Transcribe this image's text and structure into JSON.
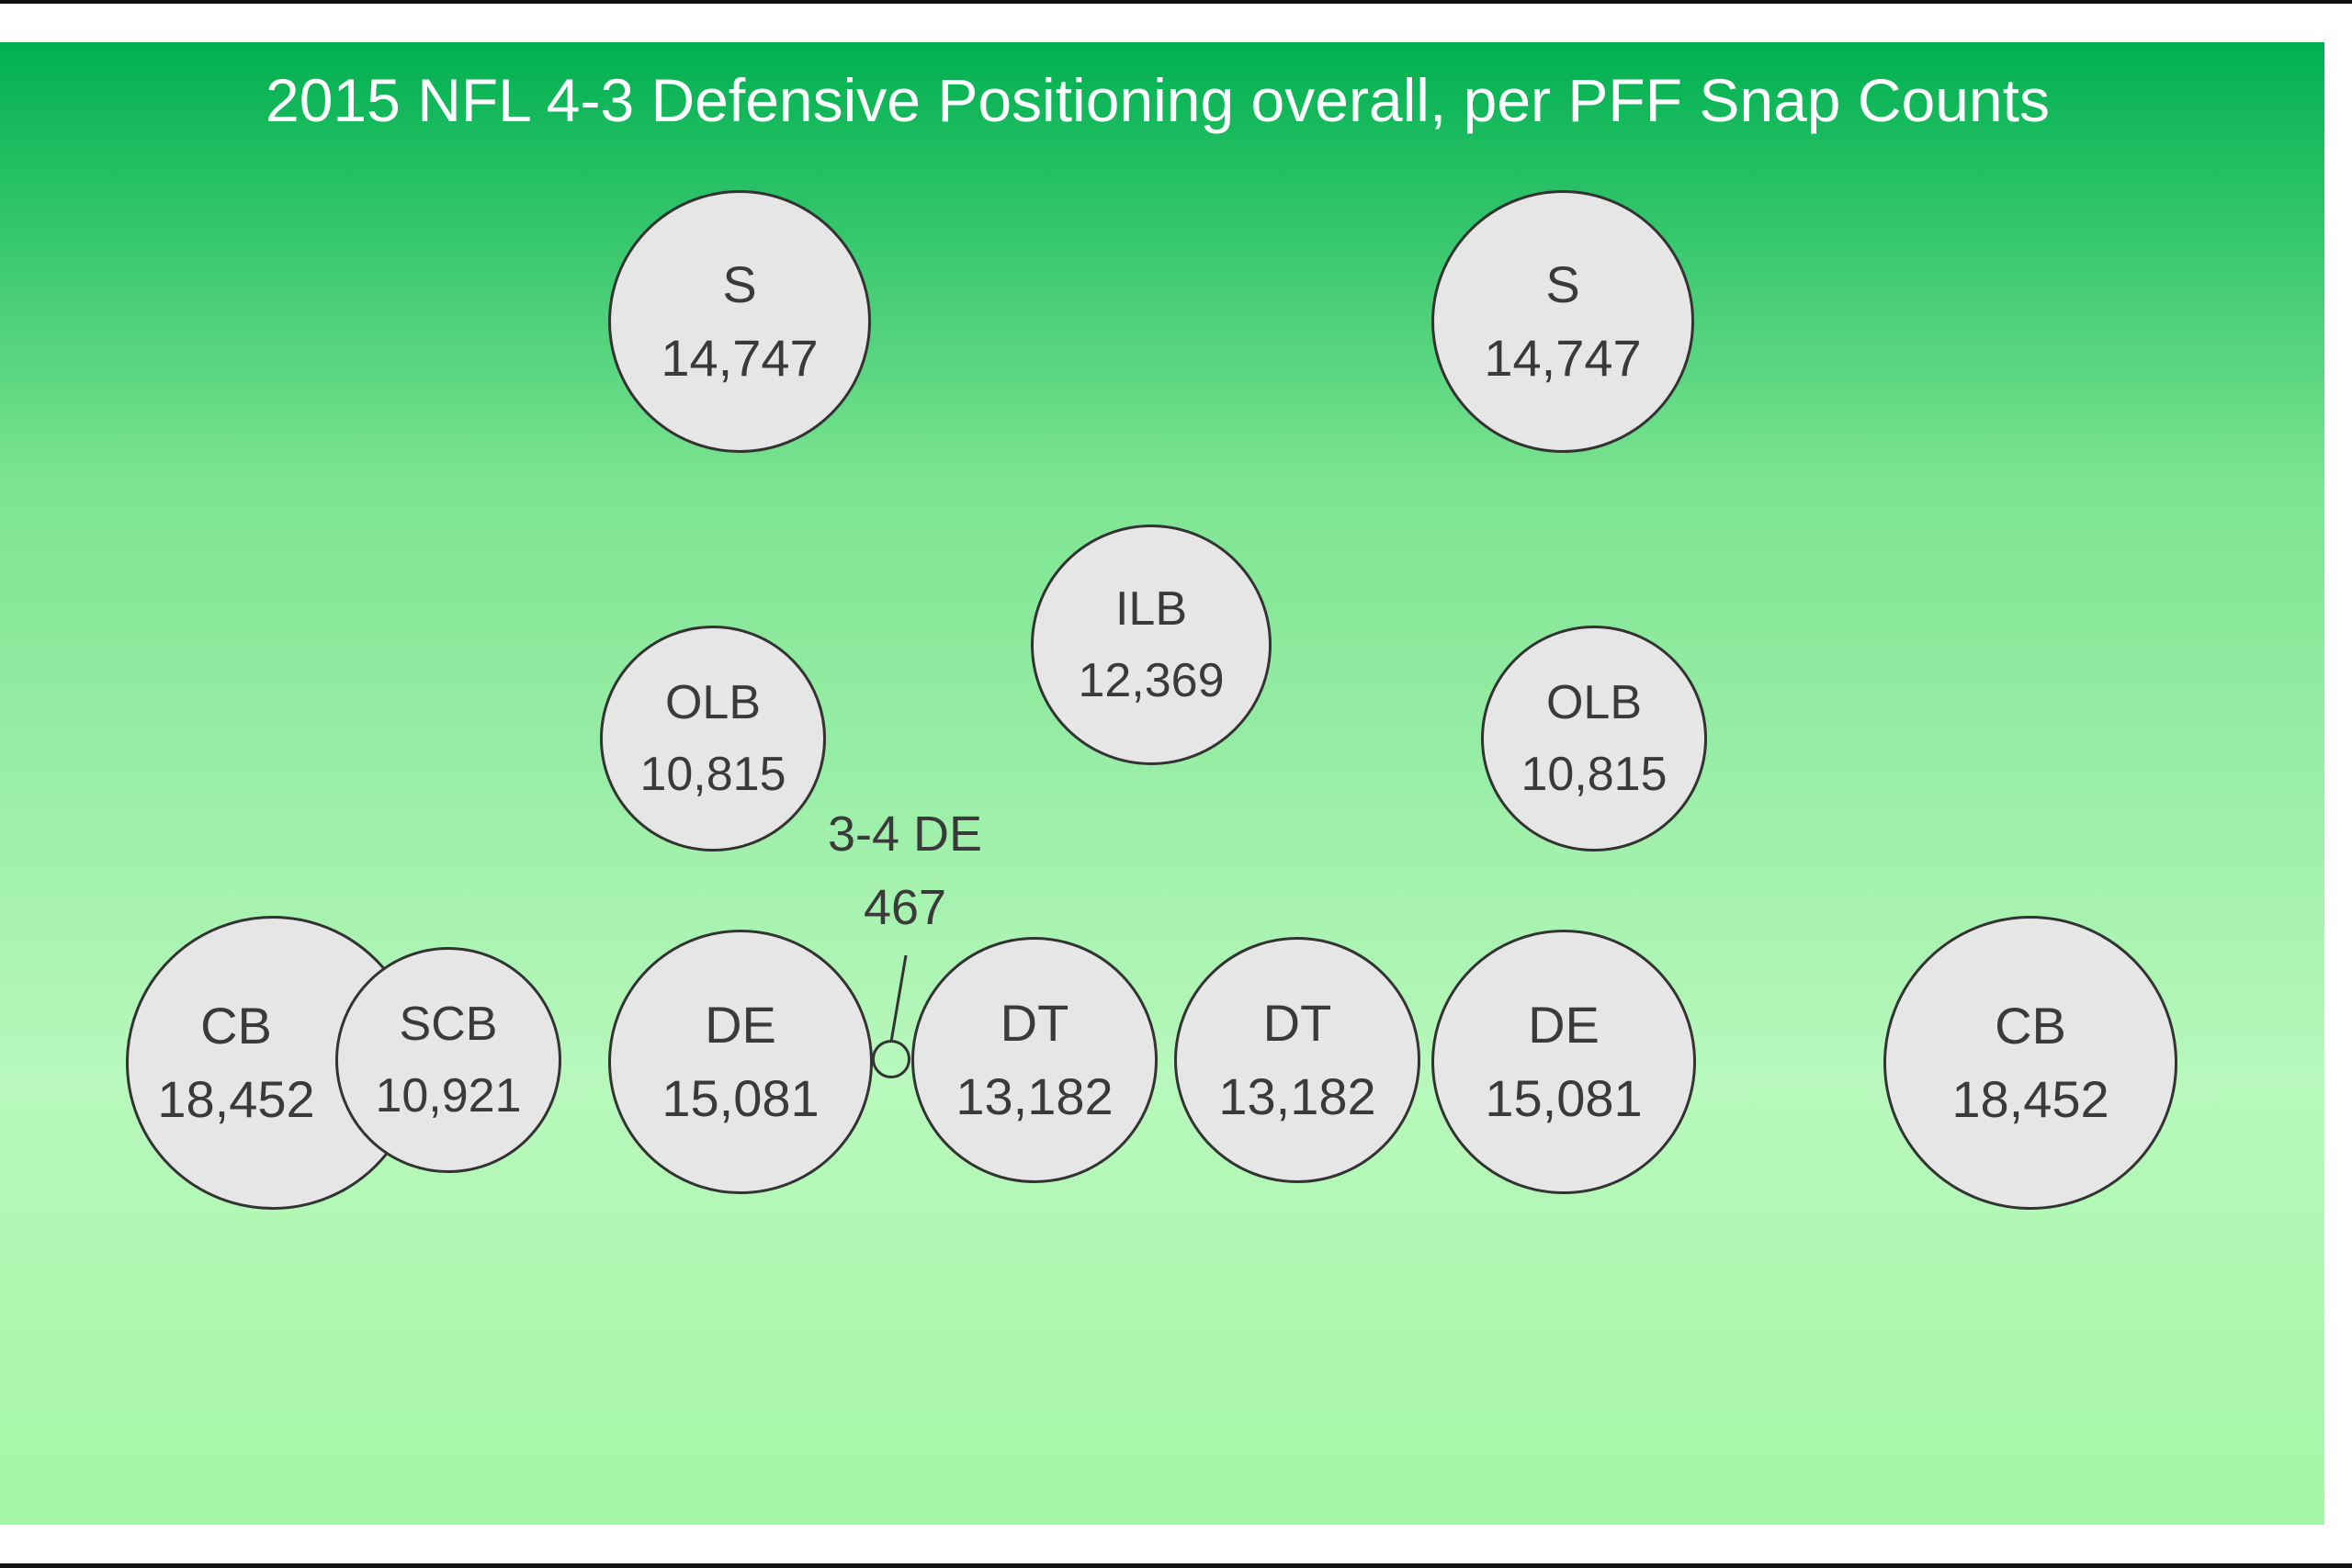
{
  "title": "2015 NFL 4-3 Defensive Positioning overall, per PFF Snap Counts",
  "colors": {
    "field_top": "#00b050",
    "field_bottom": "#a4f7a6",
    "circle_fill": "#e6e6e6",
    "circle_stroke": "#333333",
    "title_text": "#ffffff"
  },
  "players": {
    "s_left": {
      "position": "S",
      "snaps": "14,747"
    },
    "s_right": {
      "position": "S",
      "snaps": "14,747"
    },
    "ilb": {
      "position": "ILB",
      "snaps": "12,369"
    },
    "olb_left": {
      "position": "OLB",
      "snaps": "10,815"
    },
    "olb_right": {
      "position": "OLB",
      "snaps": "10,815"
    },
    "cb_left": {
      "position": "CB",
      "snaps": "18,452"
    },
    "scb": {
      "position": "SCB",
      "snaps": "10,921"
    },
    "de_left": {
      "position": "DE",
      "snaps": "15,081"
    },
    "dt_left": {
      "position": "DT",
      "snaps": "13,182"
    },
    "dt_right": {
      "position": "DT",
      "snaps": "13,182"
    },
    "de_right": {
      "position": "DE",
      "snaps": "15,081"
    },
    "cb_right": {
      "position": "CB",
      "snaps": "18,452"
    }
  },
  "callout": {
    "position": "3-4 DE",
    "snaps": "467"
  }
}
